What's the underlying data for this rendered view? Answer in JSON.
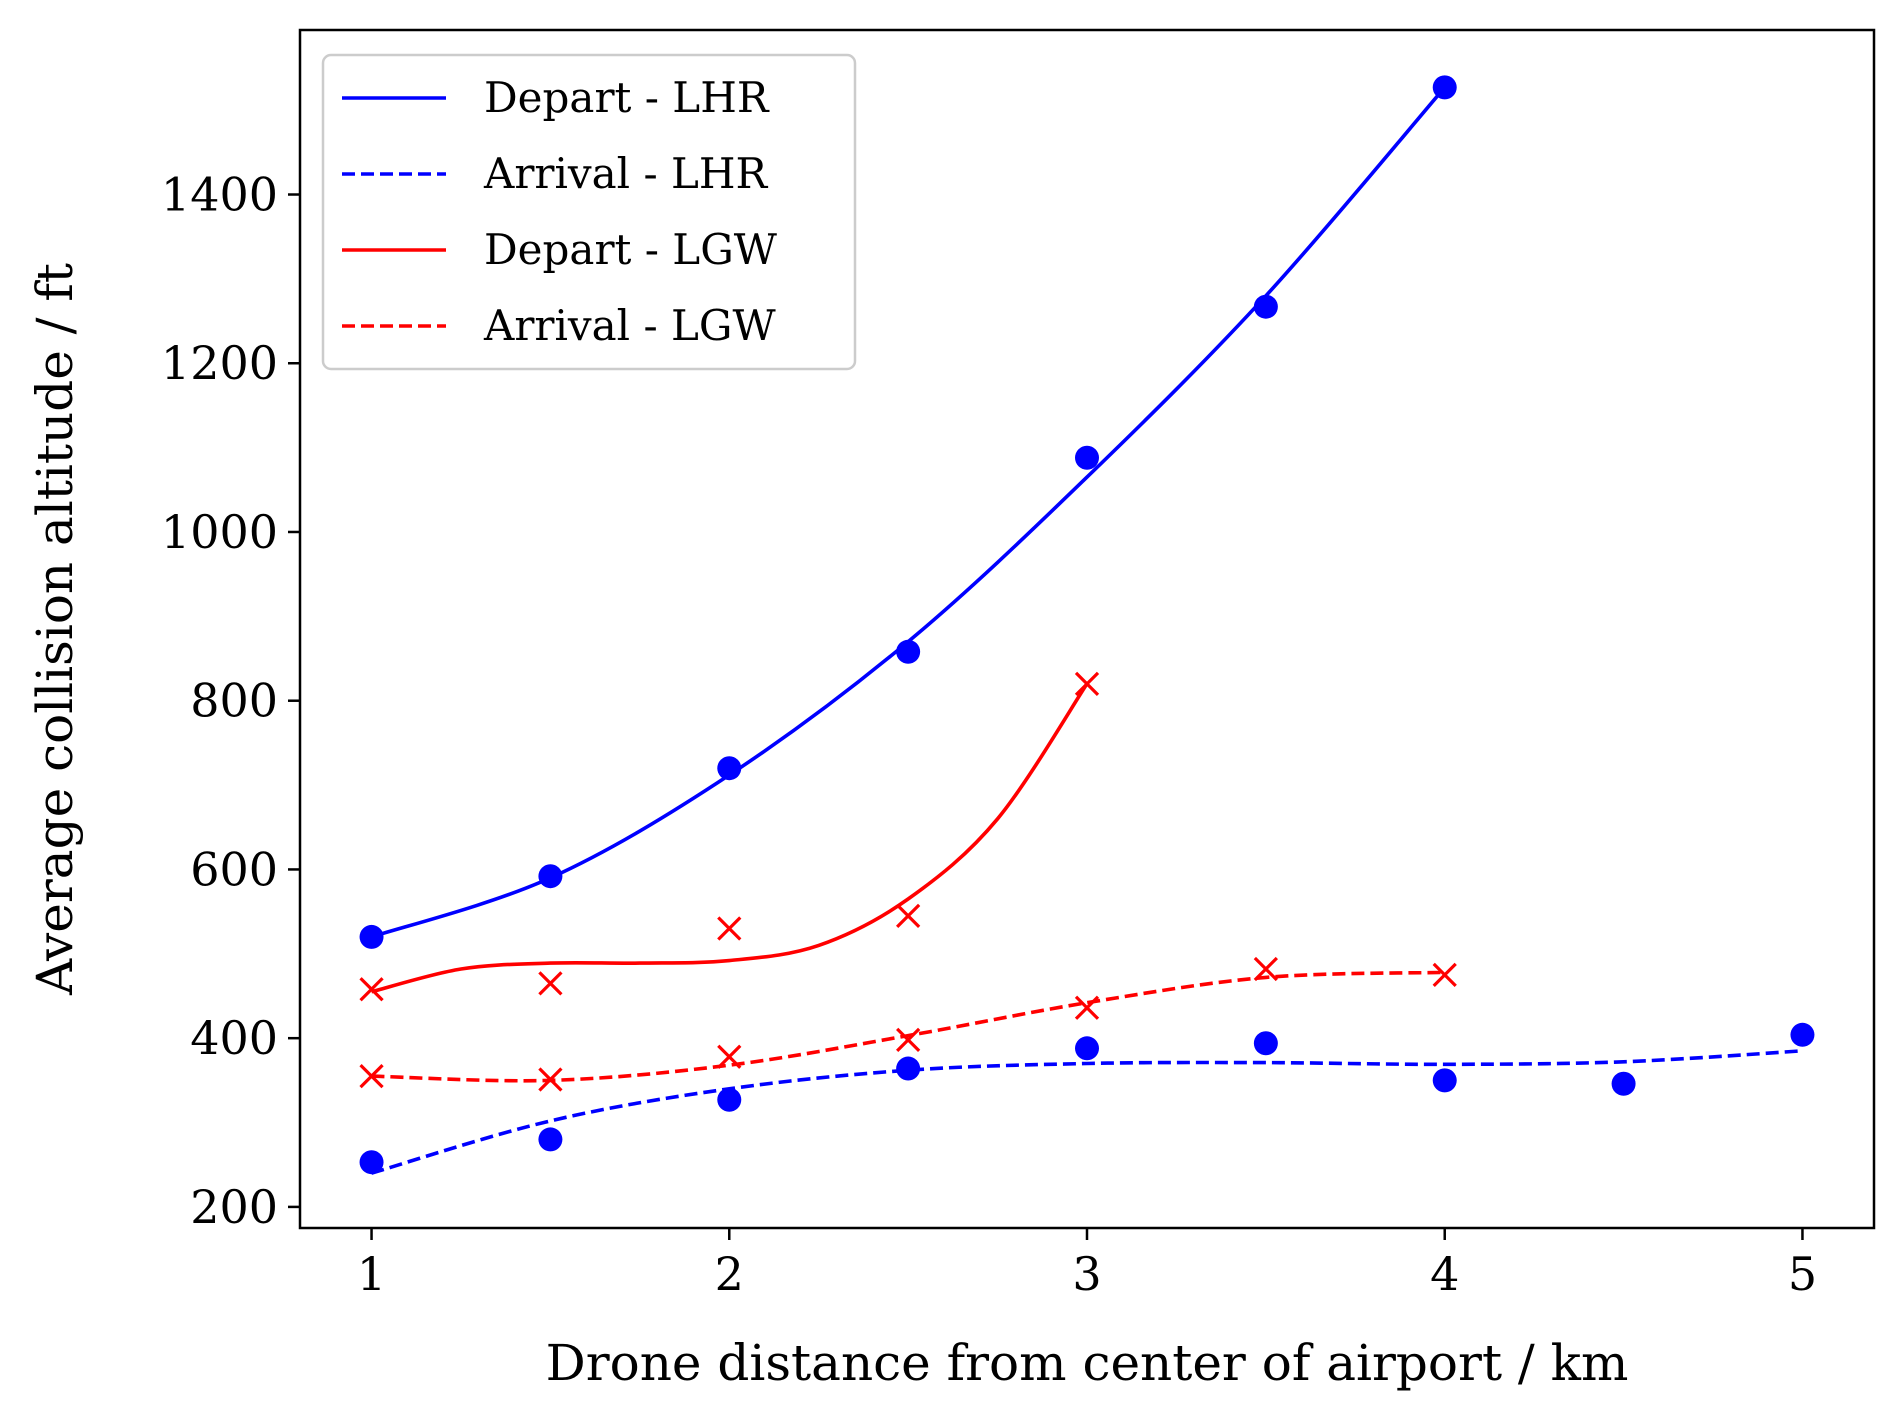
{
  "chart_data": {
    "type": "line",
    "title": "",
    "xlabel": "Drone distance from center of airport / km",
    "ylabel": "Average collision altitude / ft",
    "xlim": [
      0.8,
      5.2
    ],
    "ylim": [
      175,
      1595
    ],
    "x_ticks": [
      "1",
      "2",
      "3",
      "4",
      "5"
    ],
    "y_ticks": [
      "200",
      "400",
      "600",
      "800",
      "1000",
      "1200",
      "1400"
    ],
    "grid": false,
    "legend_position": "top-left",
    "series": [
      {
        "name": "Depart - LHR",
        "color": "#0000ff",
        "line_style": "solid",
        "marker": "circle",
        "points": [
          [
            1,
            520
          ],
          [
            1.5,
            592
          ],
          [
            2,
            720
          ],
          [
            2.5,
            858
          ],
          [
            3,
            1088
          ],
          [
            3.5,
            1267
          ],
          [
            4,
            1527
          ]
        ],
        "fit": [
          [
            1,
            520
          ],
          [
            1.5,
            590
          ],
          [
            2,
            712
          ],
          [
            2.5,
            870
          ],
          [
            3,
            1065
          ],
          [
            3.5,
            1280
          ],
          [
            4,
            1527
          ]
        ]
      },
      {
        "name": "Arrival - LHR",
        "color": "#0000ff",
        "line_style": "dashed",
        "marker": "circle",
        "points": [
          [
            1,
            253
          ],
          [
            1.5,
            280
          ],
          [
            2,
            327
          ],
          [
            2.5,
            364
          ],
          [
            3,
            388
          ],
          [
            3.5,
            394
          ],
          [
            4,
            350
          ],
          [
            4.5,
            346
          ],
          [
            5,
            404
          ]
        ],
        "fit": [
          [
            1,
            240
          ],
          [
            1.5,
            302
          ],
          [
            2,
            340
          ],
          [
            2.5,
            362
          ],
          [
            3,
            370
          ],
          [
            3.5,
            371
          ],
          [
            4,
            369
          ],
          [
            4.5,
            372
          ],
          [
            5,
            385
          ]
        ]
      },
      {
        "name": "Depart - LGW",
        "color": "#ff0000",
        "line_style": "solid",
        "marker": "x",
        "points": [
          [
            1,
            458
          ],
          [
            1.5,
            465
          ],
          [
            2,
            530
          ],
          [
            2.5,
            545
          ],
          [
            3,
            820
          ]
        ],
        "fit": [
          [
            1,
            455
          ],
          [
            1.25,
            482
          ],
          [
            1.5,
            489
          ],
          [
            1.75,
            489
          ],
          [
            2,
            492
          ],
          [
            2.25,
            510
          ],
          [
            2.5,
            565
          ],
          [
            2.75,
            660
          ],
          [
            3,
            820
          ]
        ]
      },
      {
        "name": "Arrival - LGW",
        "color": "#ff0000",
        "line_style": "dashed",
        "marker": "x",
        "points": [
          [
            1,
            355
          ],
          [
            1.5,
            351
          ],
          [
            2,
            378
          ],
          [
            2.5,
            398
          ],
          [
            3,
            436
          ],
          [
            3.5,
            482
          ],
          [
            4,
            475
          ]
        ],
        "fit": [
          [
            1,
            355
          ],
          [
            1.5,
            350
          ],
          [
            2,
            368
          ],
          [
            2.5,
            403
          ],
          [
            3,
            442
          ],
          [
            3.5,
            472
          ],
          [
            4,
            478
          ]
        ]
      }
    ]
  }
}
